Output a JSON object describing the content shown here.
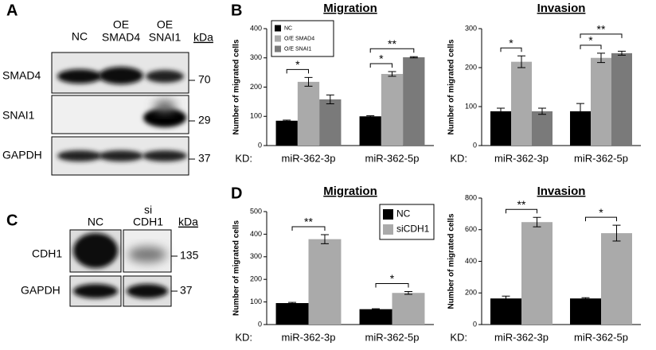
{
  "panel_labels": [
    "A",
    "B",
    "C",
    "D"
  ],
  "blot_a": {
    "unit": "kDa",
    "lanes": [
      [
        "NC"
      ],
      [
        "OE",
        "SMAD4"
      ],
      [
        "OE",
        "SNAI1"
      ]
    ],
    "rows": [
      {
        "name": "SMAD4",
        "kda": "70"
      },
      {
        "name": "SNAI1",
        "kda": "29"
      },
      {
        "name": "GAPDH",
        "kda": "37"
      }
    ]
  },
  "blot_c": {
    "unit": "kDa",
    "lanes": [
      [
        "NC"
      ],
      [
        "si",
        "CDH1"
      ]
    ],
    "rows": [
      {
        "name": "CDH1",
        "kda": "135"
      },
      {
        "name": "GAPDH",
        "kda": "37"
      }
    ]
  },
  "chart_data": [
    {
      "type": "bar",
      "title": "Migration",
      "ylabel": "Number of migrated cells",
      "xlabel": "KD:",
      "categories": [
        "miR-362-3p",
        "miR-362-5p"
      ],
      "ylim": [
        0,
        400
      ],
      "yticks": [
        0,
        100,
        200,
        300,
        400
      ],
      "legend": "upper left",
      "series": [
        {
          "name": "NC",
          "color": "#000000",
          "values": [
            85,
            100
          ],
          "errors": [
            2,
            2
          ]
        },
        {
          "name": "O/E SMAD4",
          "color": "#aaaaaa",
          "values": [
            218,
            245
          ],
          "errors": [
            15,
            8
          ]
        },
        {
          "name": "O/E SNAI1",
          "color": "#7a7a7a",
          "values": [
            158,
            302
          ],
          "errors": [
            15,
            2
          ]
        }
      ],
      "significance": [
        [
          "*"
        ],
        [
          "*",
          "**"
        ]
      ]
    },
    {
      "type": "bar",
      "title": "Invasion",
      "ylabel": "Number of migrated cells",
      "xlabel": "KD:",
      "categories": [
        "miR-362-3p",
        "miR-362-5p"
      ],
      "ylim": [
        0,
        300
      ],
      "yticks": [
        0,
        100,
        200,
        300
      ],
      "series": [
        {
          "name": "NC",
          "color": "#000000",
          "values": [
            88,
            88
          ],
          "errors": [
            8,
            20
          ]
        },
        {
          "name": "O/E SMAD4",
          "color": "#aaaaaa",
          "values": [
            215,
            225
          ],
          "errors": [
            15,
            12
          ]
        },
        {
          "name": "O/E SNAI1",
          "color": "#7a7a7a",
          "values": [
            88,
            237
          ],
          "errors": [
            8,
            5
          ]
        }
      ],
      "significance": [
        [
          "*"
        ],
        [
          "*",
          "**"
        ]
      ]
    },
    {
      "type": "bar",
      "title": "Migration",
      "ylabel": "Number of migrated cells",
      "xlabel": "KD:",
      "categories": [
        "miR-362-3p",
        "miR-362-5p"
      ],
      "ylim": [
        0,
        500
      ],
      "yticks": [
        0,
        100,
        200,
        300,
        400,
        500
      ],
      "legend": "upper right",
      "series": [
        {
          "name": "NC",
          "color": "#000000",
          "values": [
            95,
            68
          ],
          "errors": [
            3,
            2
          ]
        },
        {
          "name": "siCDH1",
          "color": "#aaaaaa",
          "values": [
            378,
            140
          ],
          "errors": [
            20,
            6
          ]
        }
      ],
      "significance": [
        [
          "**"
        ],
        [
          "*"
        ]
      ]
    },
    {
      "type": "bar",
      "title": "Invasion",
      "ylabel": "Number of migrated cells",
      "xlabel": "KD:",
      "categories": [
        "miR-362-3p",
        "miR-362-5p"
      ],
      "ylim": [
        0,
        800
      ],
      "yticks": [
        0,
        200,
        400,
        600,
        800
      ],
      "series": [
        {
          "name": "NC",
          "color": "#000000",
          "values": [
            165,
            165
          ],
          "errors": [
            15,
            5
          ]
        },
        {
          "name": "siCDH1",
          "color": "#aaaaaa",
          "values": [
            648,
            578
          ],
          "errors": [
            30,
            50
          ]
        }
      ],
      "significance": [
        [
          "**"
        ],
        [
          "*"
        ]
      ]
    }
  ]
}
